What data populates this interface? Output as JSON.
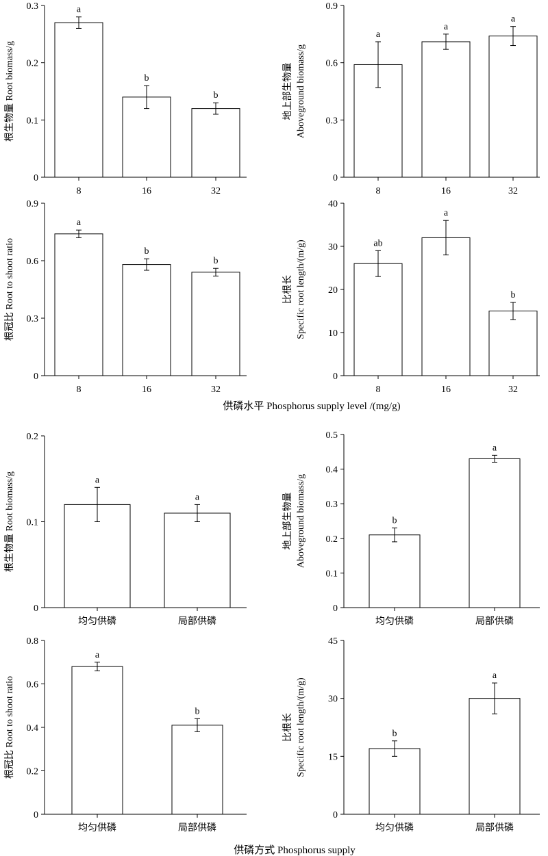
{
  "figure": {
    "xtitle_top": "供磷水平 Phosphorus supply level /(mg/g)",
    "xtitle_bottom": "供磷方式 Phosphorus supply"
  },
  "chart_data": [
    {
      "type": "bar",
      "id": "p1",
      "ylabel": [
        "根生物量 Root biomass/g"
      ],
      "categories": [
        "8",
        "16",
        "32"
      ],
      "values": [
        0.27,
        0.14,
        0.12
      ],
      "errors": [
        0.01,
        0.02,
        0.01
      ],
      "letters": [
        "a",
        "b",
        "b"
      ],
      "ylim": [
        0,
        0.3
      ],
      "yticks": [
        "0",
        "0.1",
        "0.2",
        "0.3"
      ]
    },
    {
      "type": "bar",
      "id": "p2",
      "ylabel": [
        "地上部生物量",
        "Aboveground biomass/g"
      ],
      "categories": [
        "8",
        "16",
        "32"
      ],
      "values": [
        0.59,
        0.71,
        0.74
      ],
      "errors": [
        0.12,
        0.04,
        0.05
      ],
      "letters": [
        "a",
        "a",
        "a"
      ],
      "ylim": [
        0,
        0.9
      ],
      "yticks": [
        "0",
        "0.3",
        "0.6",
        "0.9"
      ]
    },
    {
      "type": "bar",
      "id": "p3",
      "ylabel": [
        "根冠比 Root to shoot ratio"
      ],
      "categories": [
        "8",
        "16",
        "32"
      ],
      "values": [
        0.74,
        0.58,
        0.54
      ],
      "errors": [
        0.02,
        0.03,
        0.02
      ],
      "letters": [
        "a",
        "b",
        "b"
      ],
      "ylim": [
        0,
        0.9
      ],
      "yticks": [
        "0",
        "0.3",
        "0.6",
        "0.9"
      ]
    },
    {
      "type": "bar",
      "id": "p4",
      "ylabel": [
        "比根长",
        "Specific root length/(m/g)"
      ],
      "categories": [
        "8",
        "16",
        "32"
      ],
      "values": [
        26,
        32,
        15
      ],
      "errors": [
        3,
        4,
        2
      ],
      "letters": [
        "ab",
        "a",
        "b"
      ],
      "ylim": [
        0,
        40
      ],
      "yticks": [
        "0",
        "10",
        "20",
        "30",
        "40"
      ]
    },
    {
      "type": "bar",
      "id": "p5",
      "ylabel": [
        "根生物量 Root biomass/g"
      ],
      "categories": [
        "均匀供磷",
        "局部供磷"
      ],
      "values": [
        0.12,
        0.11
      ],
      "errors": [
        0.02,
        0.01
      ],
      "letters": [
        "a",
        "a"
      ],
      "ylim": [
        0,
        0.2
      ],
      "yticks": [
        "0",
        "0.1",
        "0.2"
      ]
    },
    {
      "type": "bar",
      "id": "p6",
      "ylabel": [
        "地上部生物量",
        "Aboveground biomass/g"
      ],
      "categories": [
        "均匀供磷",
        "局部供磷"
      ],
      "values": [
        0.21,
        0.43
      ],
      "errors": [
        0.02,
        0.01
      ],
      "letters": [
        "b",
        "a"
      ],
      "ylim": [
        0,
        0.5
      ],
      "yticks": [
        "0",
        "0.1",
        "0.2",
        "0.3",
        "0.4",
        "0.5"
      ]
    },
    {
      "type": "bar",
      "id": "p7",
      "ylabel": [
        "根冠比 Root to shoot ratio"
      ],
      "categories": [
        "均匀供磷",
        "局部供磷"
      ],
      "values": [
        0.68,
        0.41
      ],
      "errors": [
        0.02,
        0.03
      ],
      "letters": [
        "a",
        "b"
      ],
      "ylim": [
        0,
        0.8
      ],
      "yticks": [
        "0",
        "0.2",
        "0.4",
        "0.6",
        "0.8"
      ]
    },
    {
      "type": "bar",
      "id": "p8",
      "ylabel": [
        "比根长",
        "Specific root length/(m/g)"
      ],
      "categories": [
        "均匀供磷",
        "局部供磷"
      ],
      "values": [
        17,
        30
      ],
      "errors": [
        2,
        4
      ],
      "letters": [
        "b",
        "a"
      ],
      "ylim": [
        0,
        45
      ],
      "yticks": [
        "0",
        "15",
        "30",
        "45"
      ]
    }
  ]
}
